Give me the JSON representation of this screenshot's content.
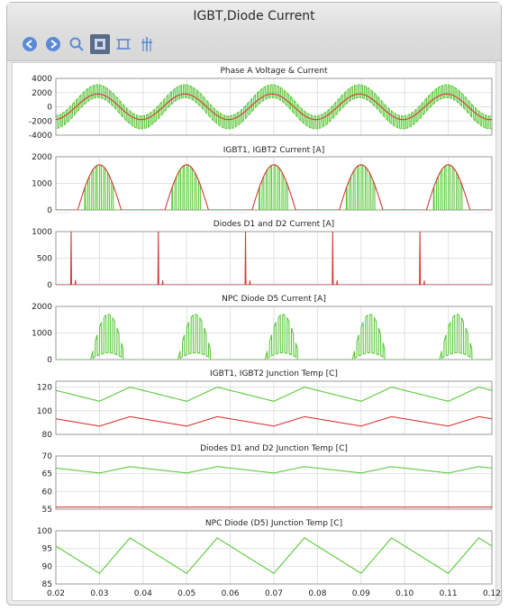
{
  "window": {
    "title": "IGBT,Diode Current"
  },
  "toolbar": {
    "buttons": [
      {
        "icon": "back-arrow-icon"
      },
      {
        "icon": "forward-arrow-icon"
      },
      {
        "icon": "zoom-icon"
      },
      {
        "icon": "pan-icon",
        "active": true
      },
      {
        "icon": "fit-icon"
      },
      {
        "icon": "crosshair-icon"
      }
    ]
  },
  "colors": {
    "green": "#5cc83c",
    "red": "#d63a35",
    "grid": "#e2e2e2",
    "axis": "#222222",
    "active_button": "#5a6b86",
    "icon_blue": "#5b8ad6"
  },
  "chart_data": [
    {
      "type": "line",
      "title": "Phase A Voltage & Current",
      "ylim": [
        -4000,
        4000
      ],
      "yticks": [
        4000,
        2000,
        0,
        -2000,
        -4000
      ],
      "series": [
        {
          "name": "",
          "color": "green",
          "description_kind": "pwm_voltage",
          "amplitude": 2200,
          "peak": 3400
        },
        {
          "name": "",
          "color": "red",
          "description_kind": "sine",
          "amplitude": 1800
        }
      ]
    },
    {
      "type": "line",
      "title": "IGBT1, IGBT2 Current [A]",
      "ylim": [
        0,
        2000
      ],
      "yticks": [
        2000,
        1000,
        0
      ],
      "series": [
        {
          "name": "",
          "color": "green",
          "description_kind": "switched_halfwave",
          "peak": 1700
        },
        {
          "name": "",
          "color": "red",
          "description_kind": "halfwave_envelope",
          "peak": 1700
        }
      ]
    },
    {
      "type": "line",
      "title": "Diodes D1 and D2 Current [A]",
      "ylim": [
        0,
        1000
      ],
      "yticks": [
        1000,
        500,
        0
      ],
      "series": [
        {
          "name": "",
          "color": "red",
          "spikes": [
            {
              "x": 0.0235,
              "y": 1000
            },
            {
              "x": 0.0245,
              "y": 90
            },
            {
              "x": 0.0435,
              "y": 1000
            },
            {
              "x": 0.0445,
              "y": 80
            },
            {
              "x": 0.0635,
              "y": 1000
            },
            {
              "x": 0.0645,
              "y": 80
            },
            {
              "x": 0.0835,
              "y": 1000
            },
            {
              "x": 0.0845,
              "y": 80
            },
            {
              "x": 0.1035,
              "y": 1000
            },
            {
              "x": 0.1045,
              "y": 80
            }
          ]
        }
      ]
    },
    {
      "type": "line",
      "title": "NPC Diode D5 Current [A]",
      "ylim": [
        0,
        2000
      ],
      "yticks": [
        2000,
        1000,
        0
      ],
      "series": [
        {
          "name": "",
          "color": "green",
          "description_kind": "npc_pulses",
          "peak": 1700
        }
      ]
    },
    {
      "type": "line",
      "title": "IGBT1, IGBT2 Junction Temp [C]",
      "ylim": [
        80,
        125
      ],
      "yticks": [
        120,
        100,
        80
      ],
      "series": [
        {
          "name": "",
          "color": "green",
          "base": 108,
          "peak": 120
        },
        {
          "name": "",
          "color": "red",
          "base": 87,
          "peak": 95
        }
      ]
    },
    {
      "type": "line",
      "title": "Diodes D1 and D2 Junction Temp [C]",
      "ylim": [
        55,
        70
      ],
      "yticks": [
        70,
        65,
        60,
        55
      ],
      "series": [
        {
          "name": "",
          "color": "green",
          "base": 65.2,
          "peak": 67
        },
        {
          "name": "",
          "color": "red",
          "base": 55.6,
          "peak": 55.6
        }
      ]
    },
    {
      "type": "line",
      "title": "NPC Diode (D5) Junction Temp [C]",
      "ylim": [
        85,
        100
      ],
      "yticks": [
        100,
        95,
        90,
        85
      ],
      "series": [
        {
          "name": "",
          "color": "green",
          "base": 88,
          "peak": 98
        }
      ]
    }
  ],
  "x_axis": {
    "range": [
      0.02,
      0.12
    ],
    "ticks": [
      "0.02",
      "0.03",
      "0.04",
      "0.05",
      "0.06",
      "0.07",
      "0.08",
      "0.09",
      "0.10",
      "0.11",
      "0.12"
    ]
  }
}
